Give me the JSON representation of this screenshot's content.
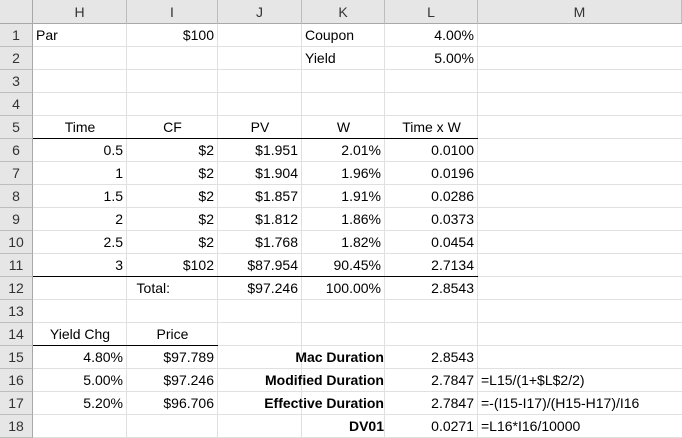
{
  "columns": [
    "H",
    "I",
    "J",
    "K",
    "L",
    "M"
  ],
  "rows": [
    "1",
    "2",
    "3",
    "4",
    "5",
    "6",
    "7",
    "8",
    "9",
    "10",
    "11",
    "12",
    "13",
    "14",
    "15",
    "16",
    "17",
    "18"
  ],
  "inputs": {
    "par_label": "Par",
    "par_value": "$100",
    "coupon_label": "Coupon",
    "coupon_value": "4.00%",
    "yield_label": "Yield",
    "yield_value": "5.00%"
  },
  "table": {
    "headers": [
      "Time",
      "CF",
      "PV",
      "W",
      "Time x W"
    ],
    "rows": [
      [
        "0.5",
        "$2",
        "$1.951",
        "2.01%",
        "0.0100"
      ],
      [
        "1",
        "$2",
        "$1.904",
        "1.96%",
        "0.0196"
      ],
      [
        "1.5",
        "$2",
        "$1.857",
        "1.91%",
        "0.0286"
      ],
      [
        "2",
        "$2",
        "$1.812",
        "1.86%",
        "0.0373"
      ],
      [
        "2.5",
        "$2",
        "$1.768",
        "1.82%",
        "0.0454"
      ],
      [
        "3",
        "$102",
        "$87.954",
        "90.45%",
        "2.7134"
      ]
    ],
    "total_label": "Total:",
    "total_pv": "$97.246",
    "total_w": "100.00%",
    "total_txw": "2.8543"
  },
  "sensitivity": {
    "headers": [
      "Yield Chg",
      "Price"
    ],
    "rows": [
      [
        "4.80%",
        "$97.789"
      ],
      [
        "5.00%",
        "$97.246"
      ],
      [
        "5.20%",
        "$96.706"
      ]
    ]
  },
  "durations": [
    {
      "label": "Mac Duration",
      "value": "2.8543",
      "formula": ""
    },
    {
      "label": "Modified Duration",
      "value": "2.7847",
      "formula": "=L15/(1+$L$2/2)"
    },
    {
      "label": "Effective Duration",
      "value": "2.7847",
      "formula": "=-(I15-I17)/(H15-H17)/I16"
    },
    {
      "label": "DV01",
      "value": "0.0271",
      "formula": "=L16*I16/10000"
    }
  ]
}
